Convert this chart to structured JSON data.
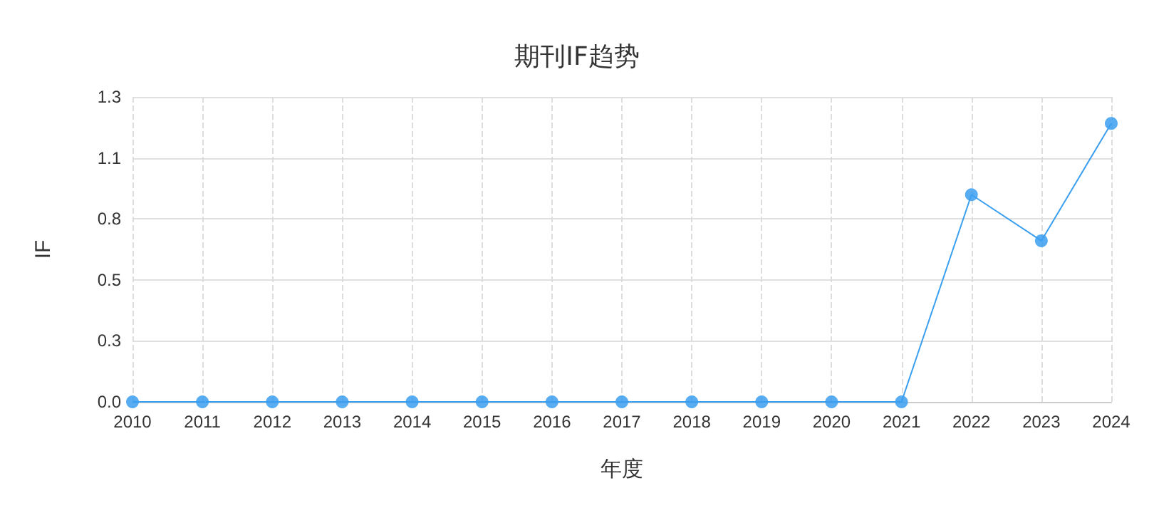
{
  "chart_data": {
    "type": "line",
    "title": "期刊IF趋势",
    "xlabel": "年度",
    "ylabel": "IF",
    "categories": [
      "2010",
      "2011",
      "2012",
      "2013",
      "2014",
      "2015",
      "2016",
      "2017",
      "2018",
      "2019",
      "2020",
      "2021",
      "2022",
      "2023",
      "2024"
    ],
    "series": [
      {
        "color": "#3b9ff0",
        "values": [
          0,
          0,
          0,
          0,
          0,
          0,
          0,
          0,
          0,
          0,
          0,
          0,
          0.9,
          0.7,
          1.21
        ]
      }
    ],
    "ylim": [
      0,
      1.325
    ],
    "yticks": [
      {
        "value": 0,
        "label": "0.0"
      },
      {
        "value": 0.265,
        "label": "0.3"
      },
      {
        "value": 0.53,
        "label": "0.5"
      },
      {
        "value": 0.795,
        "label": "0.8"
      },
      {
        "value": 1.06,
        "label": "1.1"
      },
      {
        "value": 1.325,
        "label": "1.3"
      }
    ],
    "grid": true,
    "marker": "circle",
    "line_style": "solid"
  }
}
